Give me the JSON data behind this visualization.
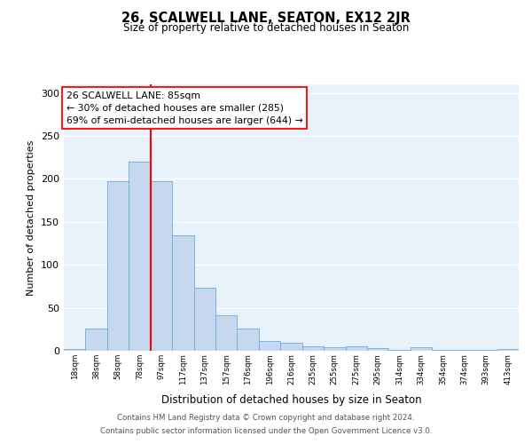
{
  "title": "26, SCALWELL LANE, SEATON, EX12 2JR",
  "subtitle": "Size of property relative to detached houses in Seaton",
  "xlabel": "Distribution of detached houses by size in Seaton",
  "ylabel": "Number of detached properties",
  "categories": [
    "18sqm",
    "38sqm",
    "58sqm",
    "78sqm",
    "97sqm",
    "117sqm",
    "137sqm",
    "157sqm",
    "176sqm",
    "196sqm",
    "216sqm",
    "235sqm",
    "255sqm",
    "275sqm",
    "295sqm",
    "314sqm",
    "334sqm",
    "354sqm",
    "374sqm",
    "393sqm",
    "413sqm"
  ],
  "values": [
    2,
    26,
    197,
    220,
    197,
    134,
    73,
    41,
    26,
    11,
    9,
    5,
    4,
    5,
    3,
    1,
    4,
    1,
    1,
    1,
    2
  ],
  "bar_color": "#c5d8f0",
  "bar_edge_color": "#6aaed6",
  "vline_x": 3.5,
  "vline_color": "red",
  "annotation_text": "26 SCALWELL LANE: 85sqm\n← 30% of detached houses are smaller (285)\n69% of semi-detached houses are larger (644) →",
  "annotation_box_color": "white",
  "annotation_box_edge": "red",
  "ylim": [
    0,
    310
  ],
  "yticks": [
    0,
    50,
    100,
    150,
    200,
    250,
    300
  ],
  "footer_line1": "Contains HM Land Registry data © Crown copyright and database right 2024.",
  "footer_line2": "Contains public sector information licensed under the Open Government Licence v3.0.",
  "background_color": "#e8f2fb",
  "fig_background": "#ffffff"
}
